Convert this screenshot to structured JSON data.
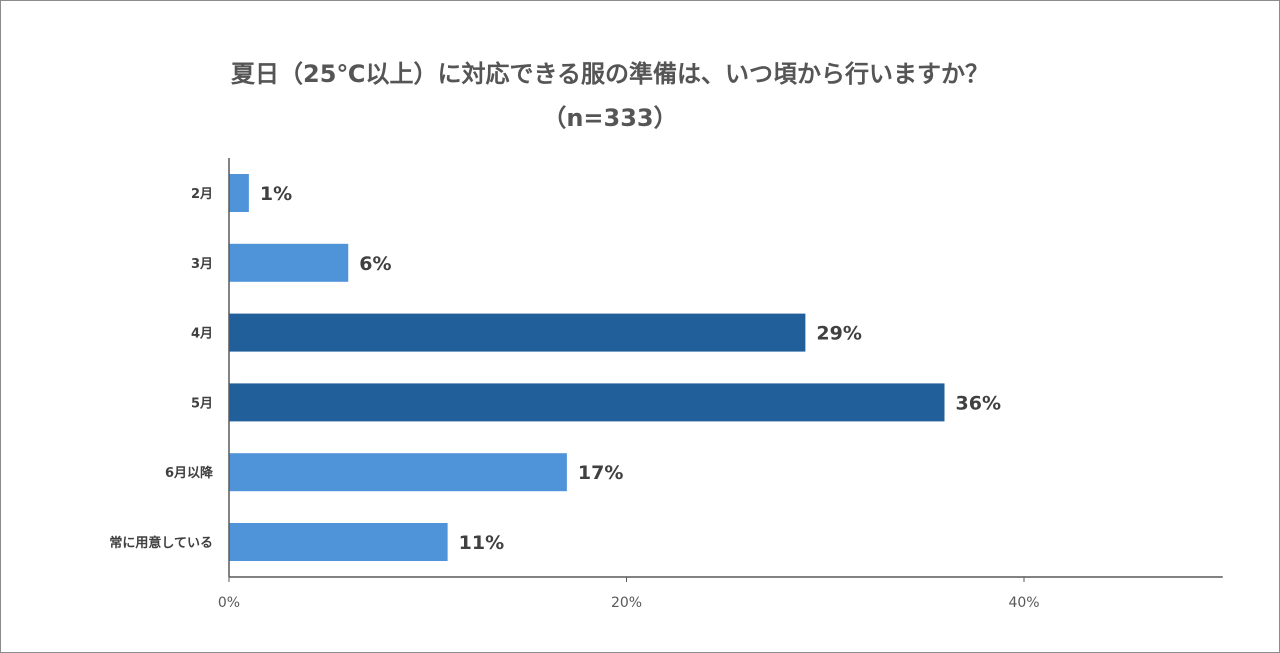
{
  "chart_data": {
    "type": "bar",
    "orientation": "horizontal",
    "title": "夏日（25℃以上）に対応できる服の準備は、いつ頃から行いますか？",
    "subtitle": "（n=333）",
    "categories": [
      "2月",
      "3月",
      "4月",
      "5月",
      "6月以降",
      "常に用意している"
    ],
    "values": [
      1,
      6,
      29,
      36,
      17,
      11
    ],
    "value_labels": [
      "1%",
      "6%",
      "29%",
      "36%",
      "17%",
      "11%"
    ],
    "highlighted": [
      false,
      false,
      true,
      true,
      false,
      false
    ],
    "xlim": [
      0,
      50
    ],
    "x_ticks": [
      0,
      20,
      40
    ],
    "x_tick_labels": [
      "0%",
      "20%",
      "40%"
    ],
    "grid": false,
    "legend": "none",
    "colors": {
      "bar": "#4f94d9",
      "bar_highlight": "#215f9a",
      "axis": "#595959"
    }
  }
}
